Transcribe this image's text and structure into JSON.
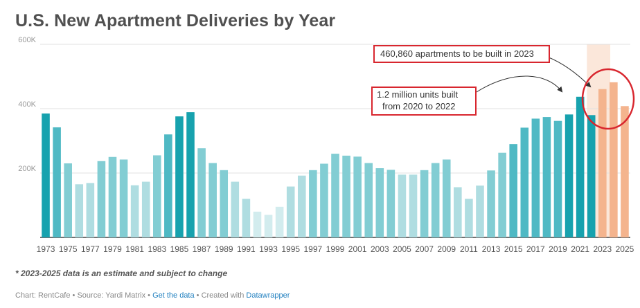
{
  "title": "U.S. New Apartment Deliveries by Year",
  "footnote": "* 2023-2025 data is an estimate and subject to change",
  "credit": {
    "chart": "Chart: RentCafe",
    "sep1": " • ",
    "source": "Source: Yardi Matrix",
    "sep2": " • ",
    "get_data": "Get the data",
    "sep3": " • ",
    "created_with": "Created with ",
    "tool": "Datawrapper"
  },
  "annotations": {
    "estimate_note": "460,860 apartments to be built in 2023",
    "range_note_line1": "1.2 million units built",
    "range_note_line2": "from 2020 to 2022"
  },
  "colors": {
    "bar_dark": "#17a2ae",
    "bar_medium": "#4fb9c4",
    "bar_light": "#82cdd3",
    "bar_pale": "#afdde1",
    "bar_palest": "#d2ecee",
    "bar_estimate": "#f4b48e",
    "estimate_band": "#fbe7da",
    "annotation_red": "#d8262e",
    "grid": "#e0e0e0",
    "axis_text": "#999999"
  },
  "chart_data": {
    "type": "bar",
    "x": [
      1973,
      1974,
      1975,
      1976,
      1977,
      1978,
      1979,
      1980,
      1981,
      1982,
      1983,
      1984,
      1985,
      1986,
      1987,
      1988,
      1989,
      1990,
      1991,
      1992,
      1993,
      1994,
      1995,
      1996,
      1997,
      1998,
      1999,
      2000,
      2001,
      2002,
      2003,
      2004,
      2005,
      2006,
      2007,
      2008,
      2009,
      2010,
      2011,
      2012,
      2013,
      2014,
      2015,
      2016,
      2017,
      2018,
      2019,
      2020,
      2021,
      2022,
      2023,
      2024,
      2025
    ],
    "values": [
      385000,
      342000,
      230000,
      165000,
      169000,
      237000,
      250000,
      242000,
      162000,
      173000,
      255000,
      320000,
      376000,
      389000,
      277000,
      231000,
      209000,
      173000,
      120000,
      80000,
      70000,
      95000,
      158000,
      192000,
      209000,
      229000,
      260000,
      254000,
      251000,
      231000,
      215000,
      210000,
      195000,
      195000,
      209000,
      231000,
      242000,
      156000,
      120000,
      161000,
      208000,
      263000,
      290000,
      341000,
      369000,
      374000,
      362000,
      382000,
      437000,
      380000,
      460860,
      482000,
      408000
    ],
    "estimate_years": [
      2023,
      2024,
      2025
    ],
    "highlight_year": 2023,
    "ylim": [
      0,
      600000
    ],
    "yticks": [
      {
        "value": 200000,
        "label": "200K"
      },
      {
        "value": 400000,
        "label": "400K"
      },
      {
        "value": 600000,
        "label": "600K"
      }
    ],
    "xtick_labels": [
      "1973",
      "1975",
      "1977",
      "1979",
      "1981",
      "1983",
      "1985",
      "1987",
      "1989",
      "1991",
      "1993",
      "1995",
      "1997",
      "1999",
      "2001",
      "2003",
      "2005",
      "2007",
      "2009",
      "2011",
      "2013",
      "2015",
      "2017",
      "2019",
      "2021",
      "2023",
      "2025"
    ],
    "grid": true
  }
}
